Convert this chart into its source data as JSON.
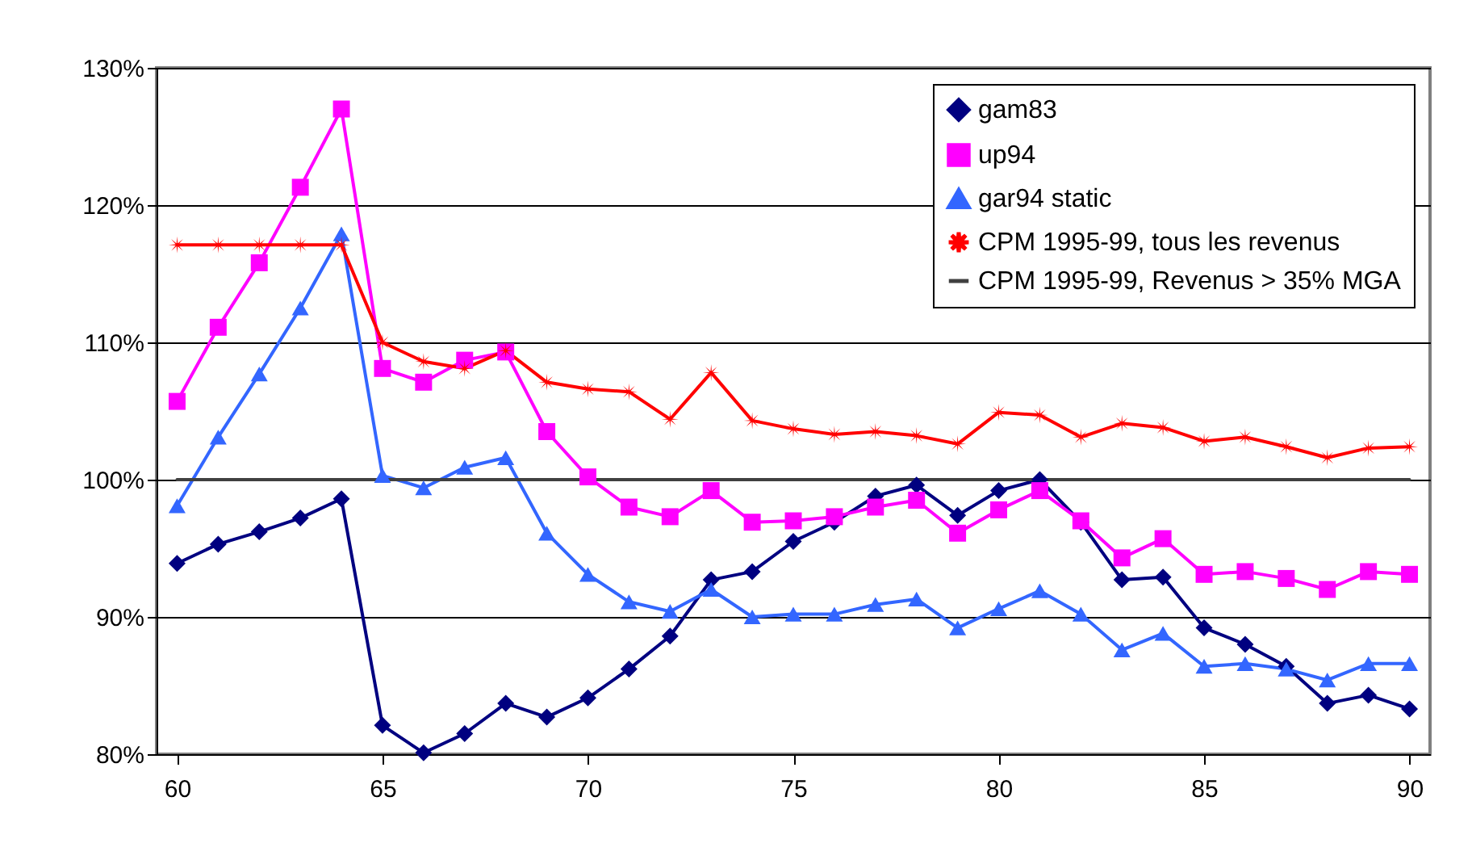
{
  "chart_data": {
    "type": "line",
    "x": [
      60,
      61,
      62,
      63,
      64,
      65,
      66,
      67,
      68,
      69,
      70,
      71,
      72,
      73,
      74,
      75,
      76,
      77,
      78,
      79,
      80,
      81,
      82,
      83,
      84,
      85,
      86,
      87,
      88,
      89,
      90
    ],
    "series": [
      {
        "name": "gam83",
        "color": "#000080",
        "marker": "diamond",
        "values": [
          93.9,
          95.3,
          96.2,
          97.2,
          98.6,
          82.1,
          80.1,
          81.5,
          83.7,
          82.7,
          84.1,
          86.2,
          88.6,
          92.7,
          93.3,
          95.5,
          96.9,
          98.8,
          99.6,
          97.4,
          99.2,
          100.0,
          96.9,
          92.7,
          92.9,
          89.2,
          88.0,
          86.4,
          83.7,
          84.3,
          83.3
        ]
      },
      {
        "name": "up94",
        "color": "#ff00ff",
        "marker": "square",
        "values": [
          105.7,
          111.1,
          115.8,
          121.3,
          127.0,
          108.1,
          107.1,
          108.7,
          109.3,
          103.5,
          100.2,
          98.0,
          97.3,
          99.2,
          96.9,
          97.0,
          97.3,
          98.0,
          98.5,
          96.1,
          97.8,
          99.2,
          97.0,
          94.3,
          95.7,
          93.1,
          93.3,
          92.8,
          92.0,
          93.3,
          93.1
        ]
      },
      {
        "name": "gar94 static",
        "color": "#3366ff",
        "marker": "triangle",
        "values": [
          98.1,
          103.1,
          107.7,
          112.5,
          117.9,
          100.3,
          99.4,
          100.9,
          101.6,
          96.1,
          93.1,
          91.1,
          90.4,
          92.0,
          90.0,
          90.2,
          90.2,
          90.9,
          91.3,
          89.2,
          90.6,
          91.9,
          90.2,
          87.6,
          88.8,
          86.4,
          86.6,
          86.2,
          85.4,
          86.6,
          86.6
        ]
      },
      {
        "name": "CPM 1995-99, tous les revenus",
        "color": "#ff0000",
        "marker": "star",
        "values": [
          117.1,
          117.1,
          117.1,
          117.1,
          117.1,
          110.0,
          108.6,
          108.1,
          109.4,
          107.1,
          106.6,
          106.4,
          104.4,
          107.8,
          104.3,
          103.7,
          103.3,
          103.5,
          103.2,
          102.6,
          104.9,
          104.7,
          103.1,
          104.1,
          103.8,
          102.8,
          103.1,
          102.4,
          101.6,
          102.3,
          102.4
        ]
      },
      {
        "name": "CPM 1995-99, Revenus > 35% MGA",
        "color": "#404040",
        "marker": "none",
        "values": [
          100,
          100,
          100,
          100,
          100,
          100,
          100,
          100,
          100,
          100,
          100,
          100,
          100,
          100,
          100,
          100,
          100,
          100,
          100,
          100,
          100,
          100,
          100,
          100,
          100,
          100,
          100,
          100,
          100,
          100,
          100
        ]
      }
    ],
    "xlim": [
      59.5,
      90.5
    ],
    "xticks": [
      60,
      65,
      70,
      75,
      80,
      85,
      90
    ],
    "ylim": [
      80,
      130
    ],
    "yticks": [
      {
        "value": 80,
        "label": "80%"
      },
      {
        "value": 90,
        "label": "90%"
      },
      {
        "value": 100,
        "label": "100%"
      },
      {
        "value": 110,
        "label": "110%"
      },
      {
        "value": 120,
        "label": "120%"
      },
      {
        "value": 130,
        "label": "130%"
      }
    ],
    "grid": "y",
    "legend": "top right",
    "line_style": "solid"
  }
}
